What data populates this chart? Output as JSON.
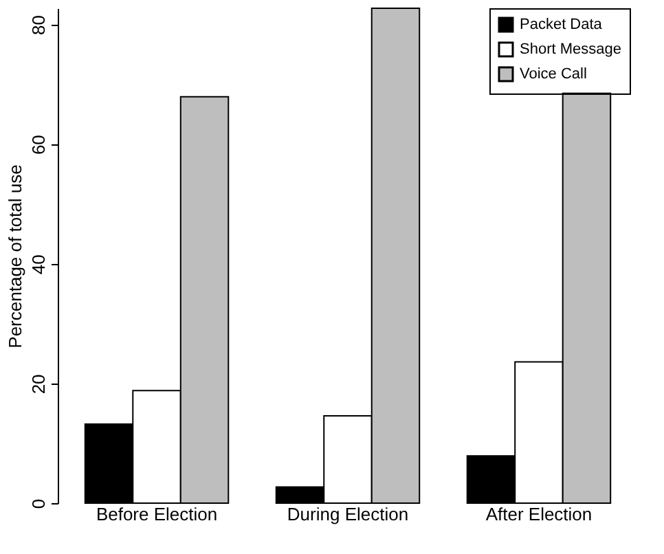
{
  "chart_data": {
    "type": "bar",
    "ylabel": "Percentage of total use",
    "categories": [
      "Before Election",
      "During Election",
      "After Election"
    ],
    "series": [
      {
        "name": "Packet Data",
        "color": "#000000",
        "values": [
          13.2,
          2.7,
          7.9
        ]
      },
      {
        "name": "Short Message",
        "color": "#ffffff",
        "values": [
          18.8,
          14.6,
          23.6
        ]
      },
      {
        "name": "Voice Call",
        "color": "#bebebe",
        "values": [
          67.9,
          82.7,
          68.5
        ]
      }
    ],
    "ylim": [
      0,
      82.7
    ],
    "yticks": [
      0,
      20,
      40,
      60,
      80
    ],
    "grid": false,
    "legend": "top right"
  }
}
